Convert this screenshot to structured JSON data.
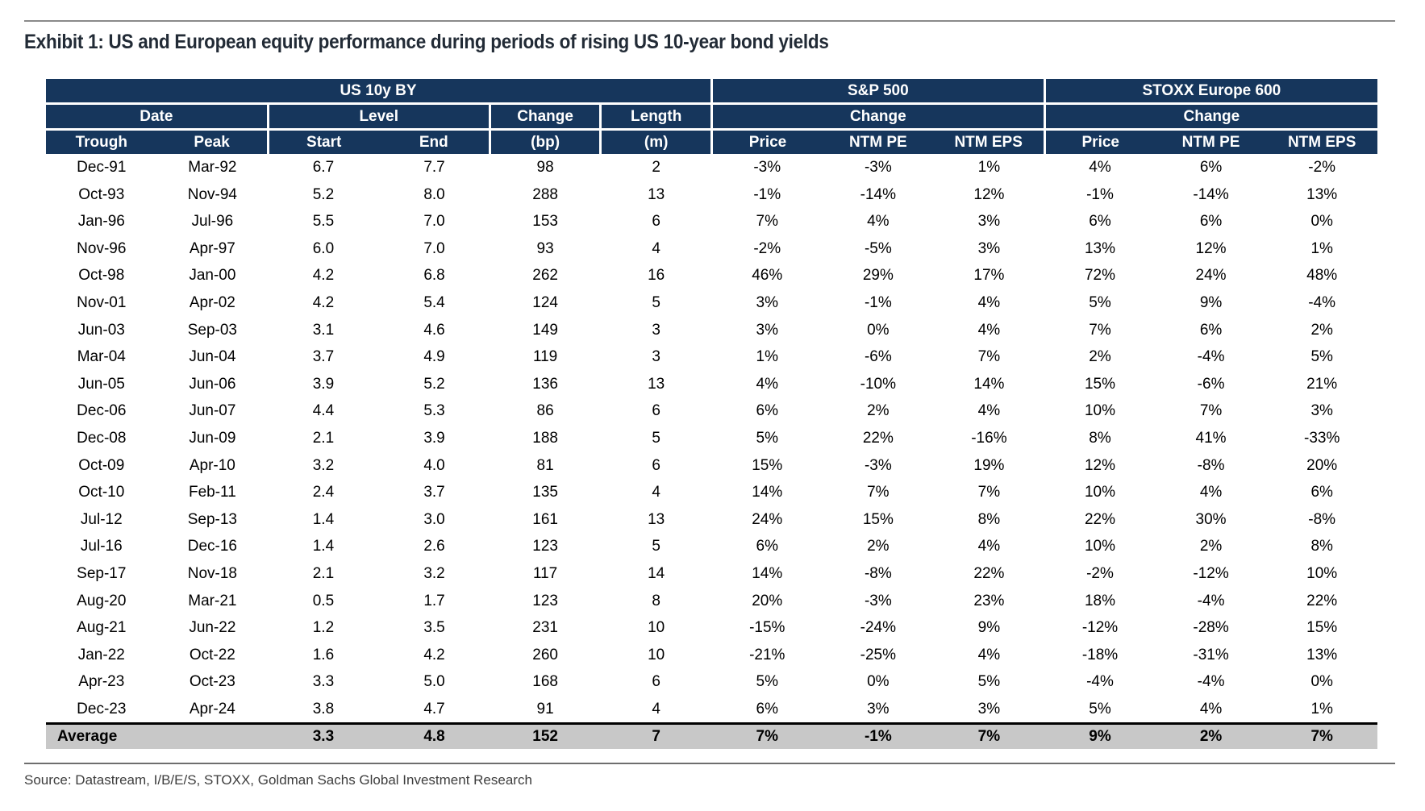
{
  "page": {
    "title": "Exhibit 1: US and European equity performance during periods of rising US 10-year bond yields",
    "source_line": "Source: Datastream, I/B/E/S, STOXX, Goldman Sachs Global Investment Research"
  },
  "colors": {
    "header_navy": "#16365C",
    "average_grey": "#C8C8C8"
  },
  "table": {
    "groups": [
      {
        "label": "US 10y BY",
        "span": 6
      },
      {
        "label": "S&P 500",
        "span": 3
      },
      {
        "label": "STOXX Europe 600",
        "span": 3
      }
    ],
    "subgroups": [
      {
        "label": "Date",
        "span": 2
      },
      {
        "label": "Level",
        "span": 2
      },
      {
        "label": "Change",
        "span": 1
      },
      {
        "label": "Length",
        "span": 1
      },
      {
        "label": "Change",
        "span": 3
      },
      {
        "label": "Change",
        "span": 3
      }
    ],
    "columns": [
      "Trough",
      "Peak",
      "Start",
      "End",
      "(bp)",
      "(m)",
      "Price",
      "NTM PE",
      "NTM EPS",
      "Price",
      "NTM PE",
      "NTM EPS"
    ],
    "rows": [
      [
        "Dec-91",
        "Mar-92",
        "6.7",
        "7.7",
        "98",
        "2",
        "-3%",
        "-3%",
        "1%",
        "4%",
        "6%",
        "-2%"
      ],
      [
        "Oct-93",
        "Nov-94",
        "5.2",
        "8.0",
        "288",
        "13",
        "-1%",
        "-14%",
        "12%",
        "-1%",
        "-14%",
        "13%"
      ],
      [
        "Jan-96",
        "Jul-96",
        "5.5",
        "7.0",
        "153",
        "6",
        "7%",
        "4%",
        "3%",
        "6%",
        "6%",
        "0%"
      ],
      [
        "Nov-96",
        "Apr-97",
        "6.0",
        "7.0",
        "93",
        "4",
        "-2%",
        "-5%",
        "3%",
        "13%",
        "12%",
        "1%"
      ],
      [
        "Oct-98",
        "Jan-00",
        "4.2",
        "6.8",
        "262",
        "16",
        "46%",
        "29%",
        "17%",
        "72%",
        "24%",
        "48%"
      ],
      [
        "Nov-01",
        "Apr-02",
        "4.2",
        "5.4",
        "124",
        "5",
        "3%",
        "-1%",
        "4%",
        "5%",
        "9%",
        "-4%"
      ],
      [
        "Jun-03",
        "Sep-03",
        "3.1",
        "4.6",
        "149",
        "3",
        "3%",
        "0%",
        "4%",
        "7%",
        "6%",
        "2%"
      ],
      [
        "Mar-04",
        "Jun-04",
        "3.7",
        "4.9",
        "119",
        "3",
        "1%",
        "-6%",
        "7%",
        "2%",
        "-4%",
        "5%"
      ],
      [
        "Jun-05",
        "Jun-06",
        "3.9",
        "5.2",
        "136",
        "13",
        "4%",
        "-10%",
        "14%",
        "15%",
        "-6%",
        "21%"
      ],
      [
        "Dec-06",
        "Jun-07",
        "4.4",
        "5.3",
        "86",
        "6",
        "6%",
        "2%",
        "4%",
        "10%",
        "7%",
        "3%"
      ],
      [
        "Dec-08",
        "Jun-09",
        "2.1",
        "3.9",
        "188",
        "5",
        "5%",
        "22%",
        "-16%",
        "8%",
        "41%",
        "-33%"
      ],
      [
        "Oct-09",
        "Apr-10",
        "3.2",
        "4.0",
        "81",
        "6",
        "15%",
        "-3%",
        "19%",
        "12%",
        "-8%",
        "20%"
      ],
      [
        "Oct-10",
        "Feb-11",
        "2.4",
        "3.7",
        "135",
        "4",
        "14%",
        "7%",
        "7%",
        "10%",
        "4%",
        "6%"
      ],
      [
        "Jul-12",
        "Sep-13",
        "1.4",
        "3.0",
        "161",
        "13",
        "24%",
        "15%",
        "8%",
        "22%",
        "30%",
        "-8%"
      ],
      [
        "Jul-16",
        "Dec-16",
        "1.4",
        "2.6",
        "123",
        "5",
        "6%",
        "2%",
        "4%",
        "10%",
        "2%",
        "8%"
      ],
      [
        "Sep-17",
        "Nov-18",
        "2.1",
        "3.2",
        "117",
        "14",
        "14%",
        "-8%",
        "22%",
        "-2%",
        "-12%",
        "10%"
      ],
      [
        "Aug-20",
        "Mar-21",
        "0.5",
        "1.7",
        "123",
        "8",
        "20%",
        "-3%",
        "23%",
        "18%",
        "-4%",
        "22%"
      ],
      [
        "Aug-21",
        "Jun-22",
        "1.2",
        "3.5",
        "231",
        "10",
        "-15%",
        "-24%",
        "9%",
        "-12%",
        "-28%",
        "15%"
      ],
      [
        "Jan-22",
        "Oct-22",
        "1.6",
        "4.2",
        "260",
        "10",
        "-21%",
        "-25%",
        "4%",
        "-18%",
        "-31%",
        "13%"
      ],
      [
        "Apr-23",
        "Oct-23",
        "3.3",
        "5.0",
        "168",
        "6",
        "5%",
        "0%",
        "5%",
        "-4%",
        "-4%",
        "0%"
      ],
      [
        "Dec-23",
        "Apr-24",
        "3.8",
        "4.7",
        "91",
        "4",
        "6%",
        "3%",
        "3%",
        "5%",
        "4%",
        "1%"
      ]
    ],
    "average_row": [
      "Average",
      "",
      "3.3",
      "4.8",
      "152",
      "7",
      "7%",
      "-1%",
      "7%",
      "9%",
      "2%",
      "7%"
    ]
  }
}
